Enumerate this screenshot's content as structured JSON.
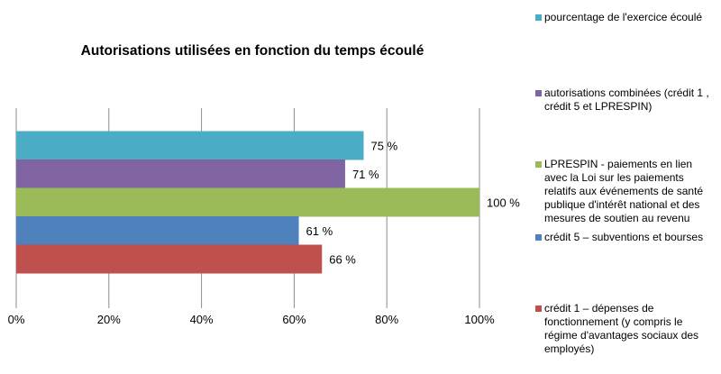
{
  "chart_data": {
    "type": "bar",
    "orientation": "horizontal",
    "title": "Autorisations utilisées en fonction du temps écoulé",
    "xlim": [
      0,
      100
    ],
    "x_ticks": [
      "0%",
      "20%",
      "40%",
      "60%",
      "80%",
      "100%"
    ],
    "grid": true,
    "legend_position": "right",
    "series": [
      {
        "name": "pourcentage de l'exercice écoulé",
        "value": 75,
        "label": "75 %",
        "color": "#4BACC6"
      },
      {
        "name": "autorisations combinées (crédit 1 , crédit 5 et LPRESPIN)",
        "value": 71,
        "label": "71 %",
        "color": "#8064A2"
      },
      {
        "name": "LPRESPIN - paiements en lien avec la Loi sur les paiements relatifs aux événements de santé publique d'intérêt national et des mesures de soutien au revenu",
        "value": 100,
        "label": "100 %",
        "color": "#9BBB59"
      },
      {
        "name": "crédit 5 – subventions et bourses",
        "value": 61,
        "label": "61 %",
        "color": "#4F81BD"
      },
      {
        "name": "crédit 1 – dépenses de fonctionnement (y compris le régime d'avantages sociaux des employés)",
        "value": 66,
        "label": "66 %",
        "color": "#C0504D"
      }
    ]
  }
}
